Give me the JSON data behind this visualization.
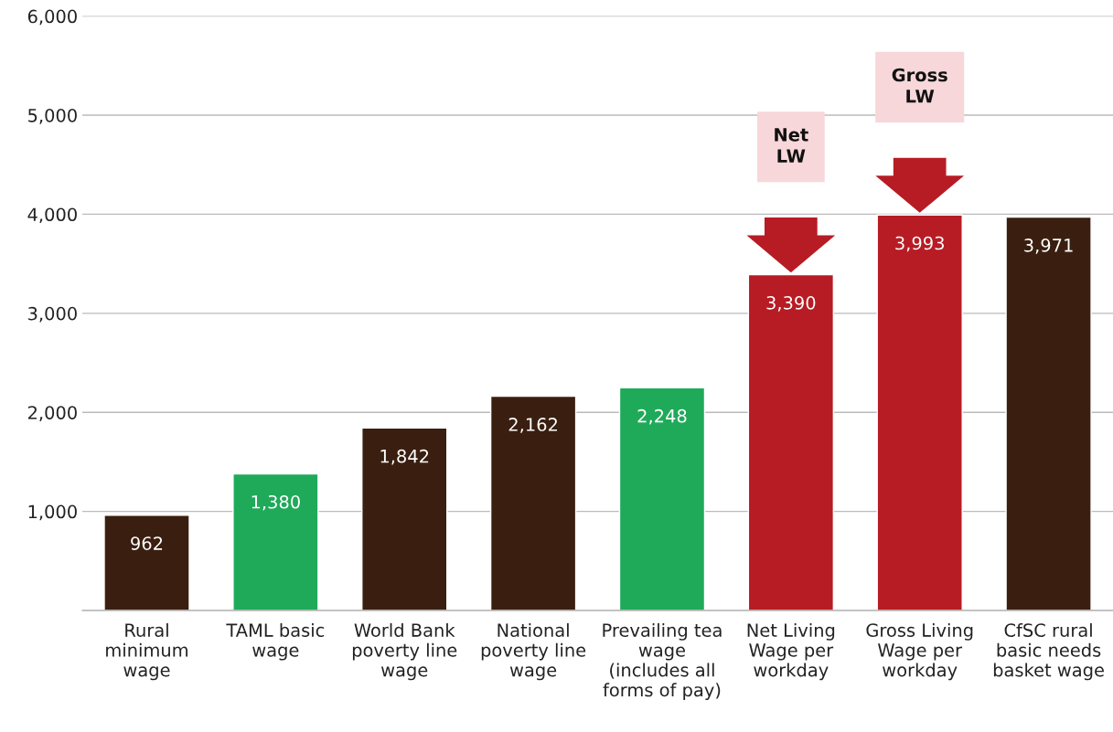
{
  "chart_data": {
    "type": "bar",
    "categories": [
      "Rural\nminimum\nwage",
      "TAML basic\nwage",
      "World Bank\npoverty line\nwage",
      "National\npoverty line\nwage",
      "Prevailing tea\nwage\n(includes all\nforms of pay)",
      "Net Living\nWage per\nworkday",
      "Gross Living\nWage per\nworkday",
      "CfSC rural\nbasic needs\nbasket wage"
    ],
    "values": [
      962,
      1380,
      1842,
      2162,
      2248,
      3390,
      3993,
      3971
    ],
    "colors": [
      "#3a1f10",
      "#1faa59",
      "#3a1f10",
      "#3a1f10",
      "#1faa59",
      "#b71c24",
      "#b71c24",
      "#3a1f10"
    ],
    "ylim": [
      0,
      6000
    ],
    "yticks": [
      {
        "value": 1000,
        "label": "1,000"
      },
      {
        "value": 2000,
        "label": "2,000"
      },
      {
        "value": 3000,
        "label": "3,000"
      },
      {
        "value": 4000,
        "label": "4,000"
      },
      {
        "value": 5000,
        "label": "5,000"
      },
      {
        "value": 6000,
        "label": "6,000"
      }
    ],
    "grid": "y",
    "value_labels": [
      "962",
      "1,380",
      "1,842",
      "2,162",
      "2,248",
      "3,390",
      "3,993",
      "3,971"
    ],
    "annotations": [
      "Net\nLW",
      "Gross\nLW"
    ]
  }
}
